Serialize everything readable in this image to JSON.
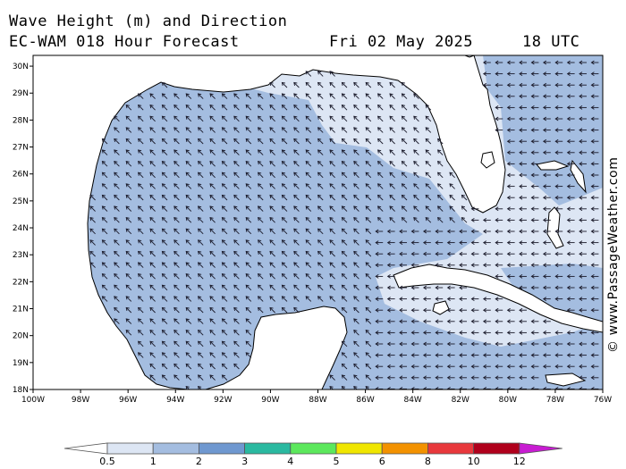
{
  "title": {
    "line1": "Wave Height (m) and Direction",
    "line2": "EC-WAM 018 Hour Forecast",
    "date": "Fri 02 May 2025",
    "time": "18 UTC"
  },
  "watermark": "© www.PassageWeather.com",
  "map": {
    "region": "Gulf of Mexico",
    "lat_ticks": [
      "18N",
      "19N",
      "20N",
      "21N",
      "22N",
      "23N",
      "24N",
      "25N",
      "26N",
      "27N",
      "28N",
      "29N",
      "30N"
    ],
    "lon_ticks": [
      "100W",
      "98W",
      "96W",
      "94W",
      "92W",
      "90W",
      "88W",
      "86W",
      "84W",
      "82W",
      "80W",
      "78W",
      "76W"
    ],
    "lat_range": [
      18,
      30.4
    ],
    "lon_range": [
      -100,
      -76
    ],
    "wave_direction": "waves propagating mostly toward the west and northwest",
    "colors": {
      "land": "#ffffff",
      "coastline": "#000000",
      "band_0_5_1": "#dde6f4",
      "band_1_2": "#a4bde0",
      "band_2_3": "#6f98d0",
      "arrow": "#1a1a2a"
    }
  },
  "colorbar": {
    "labels": [
      "0.5",
      "1",
      "2",
      "3",
      "4",
      "5",
      "6",
      "8",
      "10",
      "12"
    ],
    "colors": [
      "#ffffff",
      "#dde6f4",
      "#a4bde0",
      "#6f98d0",
      "#2ab9a0",
      "#5ce85c",
      "#f0e600",
      "#f39200",
      "#e8383c",
      "#b0001c",
      "#c81cd2"
    ]
  }
}
